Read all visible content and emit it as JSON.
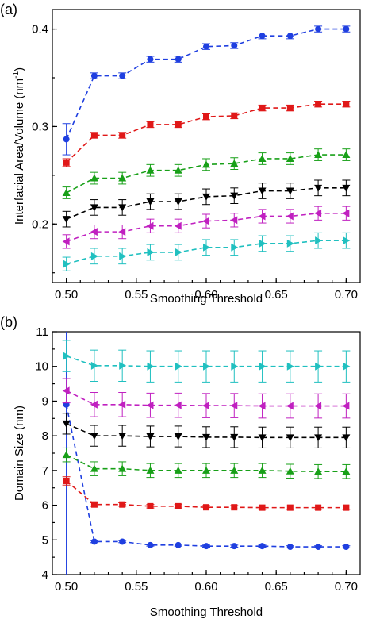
{
  "chart_data": [
    {
      "panel_label": "(a)",
      "type": "line",
      "xlabel": "Smoothing Threshold",
      "ylabel": "Interfacial Area/Volume (nm",
      "ylabel_sup": "-1",
      "ylabel_end": ")",
      "x": [
        0.5,
        0.52,
        0.54,
        0.56,
        0.58,
        0.6,
        0.62,
        0.64,
        0.66,
        0.68,
        0.7
      ],
      "xlim": [
        0.49,
        0.71
      ],
      "ylim": [
        0.14,
        0.42
      ],
      "xticks": [
        "0.50",
        "0.55",
        "0.60",
        "0.65",
        "0.70"
      ],
      "yticks": [
        "0.2",
        "0.3",
        "0.4"
      ],
      "series": [
        {
          "color": "#1f3fe0",
          "marker": "circle",
          "values": [
            0.287,
            0.352,
            0.352,
            0.369,
            0.369,
            0.382,
            0.383,
            0.393,
            0.393,
            0.4,
            0.4
          ],
          "err": [
            0.016,
            0.003,
            0.003,
            0.003,
            0.003,
            0.003,
            0.003,
            0.003,
            0.003,
            0.003,
            0.003
          ]
        },
        {
          "color": "#e01818",
          "marker": "square",
          "values": [
            0.263,
            0.291,
            0.291,
            0.302,
            0.302,
            0.31,
            0.311,
            0.319,
            0.319,
            0.323,
            0.323
          ],
          "err": [
            0.004,
            0.003,
            0.003,
            0.003,
            0.003,
            0.003,
            0.003,
            0.003,
            0.003,
            0.003,
            0.003
          ]
        },
        {
          "color": "#18a018",
          "marker": "triangle-up",
          "values": [
            0.232,
            0.247,
            0.247,
            0.255,
            0.255,
            0.261,
            0.262,
            0.267,
            0.267,
            0.271,
            0.271
          ],
          "err": [
            0.006,
            0.006,
            0.006,
            0.006,
            0.006,
            0.006,
            0.006,
            0.006,
            0.006,
            0.006,
            0.006
          ]
        },
        {
          "color": "#000000",
          "marker": "triangle-down",
          "values": [
            0.205,
            0.217,
            0.217,
            0.223,
            0.223,
            0.228,
            0.229,
            0.234,
            0.234,
            0.237,
            0.237
          ],
          "err": [
            0.008,
            0.008,
            0.008,
            0.008,
            0.008,
            0.008,
            0.008,
            0.008,
            0.008,
            0.008,
            0.008
          ]
        },
        {
          "color": "#c020c0",
          "marker": "triangle-left",
          "values": [
            0.182,
            0.192,
            0.192,
            0.198,
            0.198,
            0.203,
            0.204,
            0.208,
            0.208,
            0.211,
            0.211
          ],
          "err": [
            0.007,
            0.007,
            0.007,
            0.007,
            0.007,
            0.007,
            0.007,
            0.007,
            0.007,
            0.007,
            0.007
          ]
        },
        {
          "color": "#20c0c0",
          "marker": "triangle-right",
          "values": [
            0.159,
            0.167,
            0.167,
            0.171,
            0.171,
            0.176,
            0.176,
            0.18,
            0.18,
            0.183,
            0.183
          ],
          "err": [
            0.007,
            0.008,
            0.008,
            0.008,
            0.008,
            0.008,
            0.008,
            0.008,
            0.008,
            0.008,
            0.008
          ]
        }
      ]
    },
    {
      "panel_label": "(b)",
      "type": "line",
      "xlabel": "Smoothing Threshold",
      "ylabel": "Domain Size (nm)",
      "x": [
        0.5,
        0.52,
        0.54,
        0.56,
        0.58,
        0.6,
        0.62,
        0.64,
        0.66,
        0.68,
        0.7
      ],
      "xlim": [
        0.49,
        0.71
      ],
      "ylim": [
        4,
        11
      ],
      "xticks": [
        "0.50",
        "0.55",
        "0.60",
        "0.65",
        "0.70"
      ],
      "yticks": [
        "4",
        "5",
        "6",
        "7",
        "8",
        "9",
        "10",
        "11"
      ],
      "series": [
        {
          "color": "#1f3fe0",
          "marker": "circle",
          "values": [
            8.9,
            4.95,
            4.95,
            4.85,
            4.85,
            4.82,
            4.82,
            4.82,
            4.8,
            4.8,
            4.8
          ],
          "err": [
            8.0,
            0.03,
            0.03,
            0.03,
            0.03,
            0.03,
            0.03,
            0.03,
            0.03,
            0.03,
            0.03
          ]
        },
        {
          "color": "#e01818",
          "marker": "square",
          "values": [
            6.7,
            6.02,
            6.02,
            5.97,
            5.97,
            5.94,
            5.94,
            5.93,
            5.93,
            5.93,
            5.93
          ],
          "err": [
            0.12,
            0.05,
            0.05,
            0.05,
            0.05,
            0.05,
            0.05,
            0.05,
            0.05,
            0.05,
            0.05
          ]
        },
        {
          "color": "#18a018",
          "marker": "triangle-up",
          "values": [
            7.45,
            7.05,
            7.05,
            7.0,
            7.0,
            7.0,
            7.0,
            7.0,
            6.98,
            6.97,
            6.97
          ],
          "err": [
            0.2,
            0.2,
            0.2,
            0.2,
            0.2,
            0.2,
            0.2,
            0.2,
            0.2,
            0.2,
            0.2
          ]
        },
        {
          "color": "#000000",
          "marker": "triangle-down",
          "values": [
            8.35,
            8.0,
            8.0,
            7.98,
            7.98,
            7.96,
            7.96,
            7.95,
            7.95,
            7.95,
            7.95
          ],
          "err": [
            0.3,
            0.3,
            0.3,
            0.3,
            0.3,
            0.3,
            0.3,
            0.3,
            0.3,
            0.3,
            0.3
          ]
        },
        {
          "color": "#c020c0",
          "marker": "triangle-left",
          "values": [
            9.3,
            8.9,
            8.9,
            8.88,
            8.88,
            8.87,
            8.87,
            8.86,
            8.86,
            8.86,
            8.86
          ],
          "err": [
            0.35,
            0.35,
            0.35,
            0.35,
            0.35,
            0.35,
            0.35,
            0.35,
            0.35,
            0.35,
            0.35
          ]
        },
        {
          "color": "#20c0c0",
          "marker": "triangle-right",
          "values": [
            10.3,
            10.02,
            10.02,
            10.0,
            10.0,
            10.0,
            10.0,
            10.0,
            10.0,
            10.0,
            10.0
          ],
          "err": [
            0.45,
            0.45,
            0.45,
            0.45,
            0.45,
            0.45,
            0.45,
            0.45,
            0.45,
            0.45,
            0.45
          ]
        }
      ]
    }
  ]
}
